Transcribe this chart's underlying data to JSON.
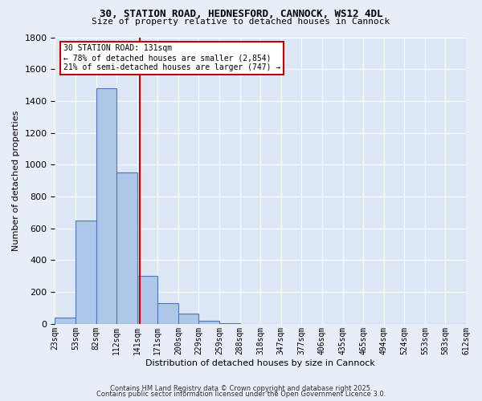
{
  "title1": "30, STATION ROAD, HEDNESFORD, CANNOCK, WS12 4DL",
  "title2": "Size of property relative to detached houses in Cannock",
  "xlabel": "Distribution of detached houses by size in Cannock",
  "ylabel": "Number of detached properties",
  "bin_labels": [
    "23sqm",
    "53sqm",
    "82sqm",
    "112sqm",
    "141sqm",
    "171sqm",
    "200sqm",
    "229sqm",
    "259sqm",
    "288sqm",
    "318sqm",
    "347sqm",
    "377sqm",
    "406sqm",
    "435sqm",
    "465sqm",
    "494sqm",
    "524sqm",
    "553sqm",
    "583sqm",
    "612sqm"
  ],
  "bar_values": [
    40,
    650,
    1480,
    950,
    300,
    130,
    65,
    20,
    5,
    0,
    0,
    0,
    0,
    0,
    0,
    0,
    0,
    0,
    0,
    0
  ],
  "bar_color": "#aec6e8",
  "bar_edge_color": "#4a7ab5",
  "bar_linewidth": 0.8,
  "vline_x": 3.63,
  "vline_color": "#cc0000",
  "annotation_title": "30 STATION ROAD: 131sqm",
  "annotation_line1": "← 78% of detached houses are smaller (2,854)",
  "annotation_line2": "21% of semi-detached houses are larger (747) →",
  "annotation_box_color": "#cc0000",
  "annotation_bg": "#ffffff",
  "bg_color": "#e8eef8",
  "plot_bg": "#dce6f5",
  "grid_color": "#ffffff",
  "ylim": [
    0,
    1800
  ],
  "yticks": [
    0,
    200,
    400,
    600,
    800,
    1000,
    1200,
    1400,
    1600,
    1800
  ],
  "footnote1": "Contains HM Land Registry data © Crown copyright and database right 2025.",
  "footnote2": "Contains public sector information licensed under the Open Government Licence 3.0."
}
